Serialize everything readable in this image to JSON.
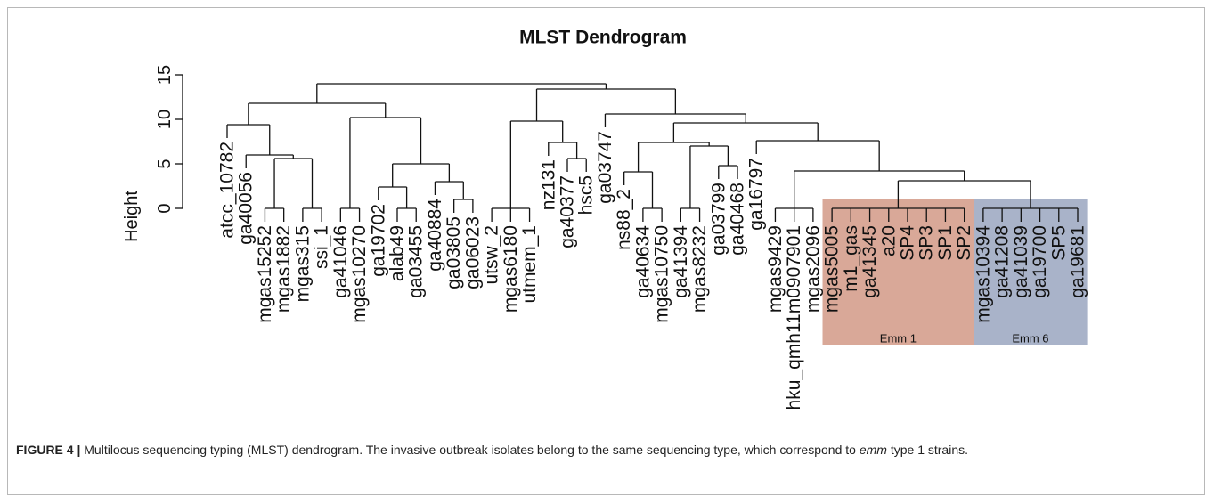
{
  "chart_data": {
    "type": "dendrogram",
    "title": "MLST Dendrogram",
    "y_label": "Height",
    "ylim": [
      0,
      15
    ],
    "yticks": [
      0,
      5,
      10,
      15
    ],
    "line_color": "#111111",
    "tree": {
      "height": 14.0,
      "children": [
        {
          "height": 11.8,
          "children": [
            {
              "height": 9.4,
              "children": [
                "atcc_10782",
                {
                  "height": 6.0,
                  "children": [
                    "ga40056",
                    {
                      "height": 5.6,
                      "children": [
                        {
                          "height": 0,
                          "children": [
                            "mgas15252",
                            "mgas1882"
                          ]
                        },
                        {
                          "height": 0,
                          "children": [
                            "mgas315",
                            "ssi_1"
                          ]
                        }
                      ]
                    }
                  ]
                }
              ]
            },
            {
              "height": 10.2,
              "children": [
                {
                  "height": 0,
                  "children": [
                    "ga41046",
                    "mgas10270"
                  ]
                },
                {
                  "height": 5.0,
                  "children": [
                    {
                      "height": 2.4,
                      "children": [
                        "ga19702",
                        {
                          "height": 0,
                          "children": [
                            "alab49",
                            "ga03455"
                          ]
                        }
                      ]
                    },
                    {
                      "height": 3.0,
                      "children": [
                        "ga40884",
                        {
                          "height": 1.0,
                          "children": [
                            "ga03805",
                            "ga06023"
                          ]
                        }
                      ]
                    }
                  ]
                }
              ]
            }
          ]
        },
        {
          "height": 13.4,
          "children": [
            {
              "height": 9.8,
              "children": [
                {
                  "height": 0,
                  "children": [
                    "utsw_2",
                    "mgas6180",
                    "utmem_1"
                  ]
                },
                {
                  "height": 7.4,
                  "children": [
                    "nz131",
                    {
                      "height": 5.6,
                      "children": [
                        "ga40377",
                        "hsc5"
                      ]
                    }
                  ]
                }
              ]
            },
            {
              "height": 10.6,
              "children": [
                "ga03747",
                {
                  "height": 9.6,
                  "children": [
                    {
                      "height": 7.4,
                      "children": [
                        {
                          "height": 4.1,
                          "children": [
                            "ns88_2",
                            {
                              "height": 0,
                              "children": [
                                "ga40634",
                                "mgas10750"
                              ]
                            }
                          ]
                        },
                        {
                          "height": 7.0,
                          "children": [
                            {
                              "height": 0,
                              "children": [
                                "ga41394",
                                "mgas8232"
                              ]
                            },
                            {
                              "height": 4.8,
                              "children": [
                                "ga03799",
                                "ga40468"
                              ]
                            }
                          ]
                        }
                      ]
                    },
                    {
                      "height": 7.6,
                      "children": [
                        "ga16797",
                        {
                          "height": 4.2,
                          "children": [
                            {
                              "height": 0,
                              "children": [
                                "mgas9429",
                                "hku_qmh11m0907901",
                                "mgas2096"
                              ]
                            },
                            {
                              "height": 3.1,
                              "children": [
                                {
                                  "height": 0,
                                  "label": "Emm 1",
                                  "color": "#d9a898",
                                  "children": [
                                    "mgas5005",
                                    "m1_gas",
                                    "ga41345",
                                    "a20",
                                    "SP4",
                                    "SP3",
                                    "SP1",
                                    "SP2"
                                  ]
                                },
                                {
                                  "height": 0,
                                  "label": "Emm 6",
                                  "color": "#a9b3c9",
                                  "children": [
                                    "mgas10394",
                                    "ga41208",
                                    "ga41039",
                                    "ga19700",
                                    "SP5",
                                    "ga19681"
                                  ]
                                }
                              ]
                            }
                          ]
                        }
                      ]
                    }
                  ]
                }
              ]
            }
          ]
        }
      ]
    }
  },
  "caption": {
    "figure": "FIGURE 4 |",
    "text_before": "Multilocus sequencing typing (MLST) dendrogram. The invasive outbreak isolates belong to the same sequencing type, which correspond to",
    "emphasis": "emm",
    "text_after": "type 1 strains."
  }
}
